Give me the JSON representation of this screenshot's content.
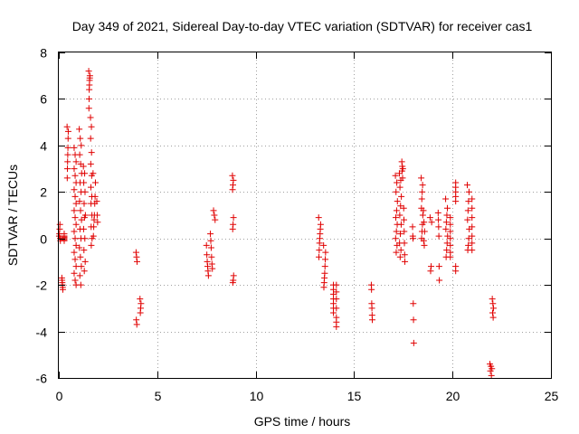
{
  "chart_data": {
    "type": "scatter",
    "title": "Day 349 of 2021, Sidereal Day-to-day VTEC variation (SDTVAR) for receiver cas1",
    "xlabel": "GPS time / hours",
    "ylabel": "SDTVAR / TECUs",
    "xlim": [
      0,
      25
    ],
    "ylim": [
      -6,
      8
    ],
    "xticks": [
      "0",
      "5",
      "10",
      "15",
      "20",
      "25"
    ],
    "yticks": [
      "-6",
      "-4",
      "-2",
      "0",
      "2",
      "4",
      "6",
      "8"
    ],
    "grid": true,
    "marker": "+",
    "marker_color": "#e00000",
    "series": [
      {
        "name": "SDTVAR",
        "clusters": [
          {
            "x": 0.05,
            "xspread": 0.06,
            "y": [
              0.1,
              0.2,
              0.4,
              0.6,
              0.0,
              -0.1
            ]
          },
          {
            "x": 0.18,
            "xspread": 0.05,
            "y": [
              -1.7,
              -1.8,
              -1.9,
              -2.0,
              -2.1,
              -2.2
            ]
          },
          {
            "x": 0.4,
            "xspread": 0.25,
            "y": [
              0.2,
              0.1,
              0.0,
              -0.1,
              0.05,
              0.1,
              -0.05
            ]
          },
          {
            "x": 0.45,
            "xspread": 0.06,
            "y": [
              4.8,
              4.6,
              4.3,
              3.9,
              3.6,
              3.3,
              3.0,
              2.6
            ]
          },
          {
            "x": 0.85,
            "xspread": 0.14,
            "y": [
              3.9,
              3.6,
              3.3,
              3.0,
              2.7,
              2.4,
              2.1,
              1.8,
              1.5,
              1.2,
              0.9,
              0.6,
              0.3,
              0.0,
              -0.3,
              -0.6,
              -0.9,
              -1.2,
              -1.5,
              -1.8,
              -2.0
            ]
          },
          {
            "x": 1.1,
            "xspread": 0.12,
            "y": [
              4.7,
              4.3,
              4.0,
              3.6,
              3.2,
              2.8,
              2.4,
              2.0,
              1.6,
              1.2,
              0.8,
              0.4,
              0.0,
              -0.4,
              -0.8,
              -1.2,
              -1.6,
              -2.0
            ]
          },
          {
            "x": 1.3,
            "xspread": 0.1,
            "y": [
              3.1,
              2.8,
              2.4,
              2.0,
              1.5,
              1.0,
              0.9,
              0.4,
              0.0,
              -0.5,
              -1.0,
              -1.4
            ]
          },
          {
            "x": 1.55,
            "xspread": 0.06,
            "y": [
              7.2,
              7.0,
              6.9,
              6.8,
              6.6,
              6.4,
              6.0,
              5.6
            ]
          },
          {
            "x": 1.65,
            "xspread": 0.08,
            "y": [
              5.2,
              4.8,
              4.3,
              3.7,
              3.2,
              2.7,
              2.2,
              1.8,
              1.5,
              1.0,
              0.5,
              0.0,
              -0.3
            ]
          },
          {
            "x": 1.8,
            "xspread": 0.12,
            "y": [
              2.8,
              2.4,
              1.8,
              1.5,
              1.0,
              0.8,
              0.5,
              0.1
            ]
          },
          {
            "x": 1.95,
            "xspread": 0.04,
            "y": [
              1.6,
              1.0,
              0.7
            ]
          },
          {
            "x": 3.95,
            "xspread": 0.05,
            "y": [
              -0.6,
              -0.8,
              -1.0,
              -3.5,
              -3.7
            ]
          },
          {
            "x": 4.15,
            "xspread": 0.05,
            "y": [
              -2.6,
              -2.8,
              -3.0,
              -3.2
            ]
          },
          {
            "x": 7.55,
            "xspread": 0.1,
            "y": [
              -0.3,
              -0.7,
              -1.0,
              -1.2,
              -1.4,
              -1.6
            ]
          },
          {
            "x": 7.75,
            "xspread": 0.1,
            "y": [
              0.2,
              -0.1,
              -0.4,
              -0.8,
              -1.1,
              -1.3
            ]
          },
          {
            "x": 7.9,
            "xspread": 0.08,
            "y": [
              1.2,
              1.0,
              0.8
            ]
          },
          {
            "x": 8.85,
            "xspread": 0.06,
            "y": [
              2.7,
              2.5,
              2.3,
              2.1,
              0.9,
              0.6,
              0.4,
              -1.6,
              -1.8,
              -1.9
            ]
          },
          {
            "x": 13.25,
            "xspread": 0.1,
            "y": [
              0.9,
              0.6,
              0.4,
              0.2,
              0.0,
              -0.2,
              -0.5,
              -0.8
            ]
          },
          {
            "x": 13.5,
            "xspread": 0.1,
            "y": [
              -0.3,
              -0.6,
              -0.9,
              -1.2,
              -1.5,
              -1.7,
              -1.9,
              -2.1
            ]
          },
          {
            "x": 14.0,
            "xspread": 0.1,
            "y": [
              -2.0,
              -2.2,
              -2.4,
              -2.6,
              -2.8,
              -3.0,
              -3.2
            ]
          },
          {
            "x": 14.15,
            "xspread": 0.1,
            "y": [
              -2.0,
              -2.3,
              -2.6,
              -3.0,
              -3.4,
              -3.6,
              -3.8
            ]
          },
          {
            "x": 15.9,
            "xspread": 0.05,
            "y": [
              -2.0,
              -2.2,
              -2.8,
              -3.0,
              -3.3,
              -3.5
            ]
          },
          {
            "x": 17.15,
            "xspread": 0.1,
            "y": [
              2.7,
              2.4,
              2.0,
              1.6,
              1.2,
              0.9,
              0.6,
              0.3,
              0.0,
              -0.3,
              -0.6
            ]
          },
          {
            "x": 17.35,
            "xspread": 0.1,
            "y": [
              2.8,
              2.5,
              2.2,
              1.8,
              1.4,
              1.0,
              0.6,
              0.2,
              -0.2,
              -0.5,
              -0.8
            ]
          },
          {
            "x": 17.45,
            "xspread": 0.05,
            "y": [
              3.3,
              3.1,
              3.0,
              2.9,
              2.6
            ]
          },
          {
            "x": 17.55,
            "xspread": 0.06,
            "y": [
              1.3,
              0.8,
              0.3,
              -0.2,
              -0.7,
              -1.0
            ]
          },
          {
            "x": 18.0,
            "xspread": 0.06,
            "y": [
              0.5,
              0.1,
              0.0,
              -2.8,
              -3.5,
              -4.5
            ]
          },
          {
            "x": 18.45,
            "xspread": 0.08,
            "y": [
              2.6,
              2.3,
              2.0,
              1.7,
              1.3,
              1.0,
              0.6,
              0.3,
              0.0
            ]
          },
          {
            "x": 18.55,
            "xspread": 0.06,
            "y": [
              1.2,
              0.7,
              0.3,
              -0.1,
              -0.3
            ]
          },
          {
            "x": 18.9,
            "xspread": 0.08,
            "y": [
              0.9,
              0.7,
              -1.2,
              -1.4
            ]
          },
          {
            "x": 19.3,
            "xspread": 0.06,
            "y": [
              1.1,
              0.8,
              0.5,
              0.1,
              -1.2,
              -1.8
            ]
          },
          {
            "x": 19.7,
            "xspread": 0.1,
            "y": [
              1.7,
              1.3,
              1.0,
              0.7,
              0.4,
              0.1,
              -0.2,
              -0.5,
              -0.8
            ]
          },
          {
            "x": 19.95,
            "xspread": 0.12,
            "y": [
              0.9,
              0.6,
              0.3,
              0.0,
              -0.3,
              -0.6,
              -0.8
            ]
          },
          {
            "x": 20.2,
            "xspread": 0.08,
            "y": [
              2.4,
              2.2,
              2.0,
              1.8,
              1.6,
              -1.2,
              -1.4
            ]
          },
          {
            "x": 20.8,
            "xspread": 0.1,
            "y": [
              2.3,
              2.0,
              1.6,
              1.2,
              0.8,
              0.4,
              0.0,
              -0.3,
              -0.5
            ]
          },
          {
            "x": 21.05,
            "xspread": 0.12,
            "y": [
              1.7,
              1.3,
              0.9,
              0.5,
              0.1,
              -0.2,
              -0.5
            ]
          },
          {
            "x": 22.05,
            "xspread": 0.06,
            "y": [
              -2.6,
              -2.8,
              -3.0,
              -3.2,
              -3.4
            ]
          },
          {
            "x": 21.95,
            "xspread": 0.1,
            "y": [
              -5.4,
              -5.5,
              -5.6,
              -5.7,
              -5.9
            ]
          }
        ]
      }
    ]
  }
}
